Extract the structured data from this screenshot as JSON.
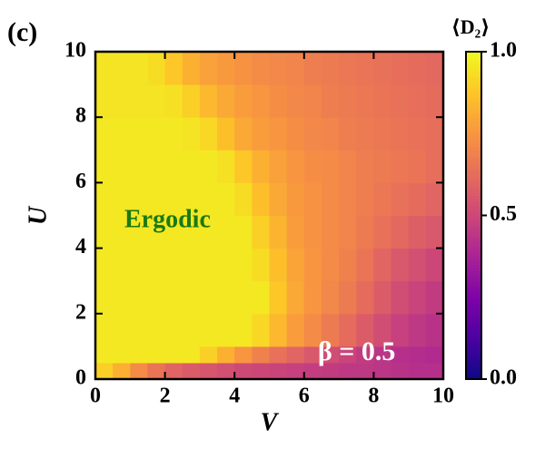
{
  "chart_data": {
    "type": "heatmap",
    "panel_label": "(c)",
    "xlabel": "V",
    "ylabel": "U",
    "colorbar_label": "⟨D₂⟩",
    "annotations": [
      "Ergodic",
      "β = 0.5"
    ],
    "colormap": "plasma",
    "x_edges": [
      0,
      0.5,
      1,
      1.5,
      2,
      2.5,
      3,
      3.5,
      4,
      4.5,
      5,
      5.5,
      6,
      6.5,
      7,
      7.5,
      8,
      8.5,
      9,
      9.5,
      10
    ],
    "y_edges": [
      0,
      0.5,
      1,
      2,
      3,
      4,
      5,
      6,
      7,
      8,
      9,
      10
    ],
    "values": [
      [
        0.9,
        0.82,
        0.72,
        0.65,
        0.6,
        0.57,
        0.55,
        0.53,
        0.51,
        0.5,
        0.49,
        0.48,
        0.47,
        0.46,
        0.45,
        0.45,
        0.44,
        0.43,
        0.42,
        0.42
      ],
      [
        0.96,
        0.96,
        0.96,
        0.96,
        0.96,
        0.96,
        0.9,
        0.82,
        0.75,
        0.69,
        0.64,
        0.6,
        0.56,
        0.52,
        0.49,
        0.46,
        0.44,
        0.42,
        0.41,
        0.4
      ],
      [
        0.96,
        0.96,
        0.96,
        0.96,
        0.96,
        0.96,
        0.96,
        0.96,
        0.96,
        0.92,
        0.84,
        0.77,
        0.72,
        0.67,
        0.62,
        0.57,
        0.52,
        0.48,
        0.45,
        0.43
      ],
      [
        0.96,
        0.96,
        0.96,
        0.96,
        0.96,
        0.96,
        0.96,
        0.96,
        0.96,
        0.96,
        0.88,
        0.8,
        0.75,
        0.71,
        0.67,
        0.62,
        0.57,
        0.52,
        0.49,
        0.46
      ],
      [
        0.96,
        0.96,
        0.96,
        0.96,
        0.96,
        0.96,
        0.96,
        0.96,
        0.96,
        0.93,
        0.86,
        0.79,
        0.75,
        0.72,
        0.69,
        0.65,
        0.6,
        0.56,
        0.53,
        0.5
      ],
      [
        0.96,
        0.96,
        0.96,
        0.96,
        0.96,
        0.96,
        0.96,
        0.96,
        0.96,
        0.9,
        0.83,
        0.77,
        0.74,
        0.72,
        0.7,
        0.67,
        0.64,
        0.61,
        0.58,
        0.56
      ],
      [
        0.96,
        0.96,
        0.96,
        0.96,
        0.96,
        0.96,
        0.96,
        0.96,
        0.93,
        0.86,
        0.8,
        0.76,
        0.74,
        0.72,
        0.7,
        0.68,
        0.66,
        0.64,
        0.62,
        0.6
      ],
      [
        0.96,
        0.96,
        0.96,
        0.96,
        0.96,
        0.96,
        0.96,
        0.94,
        0.88,
        0.82,
        0.78,
        0.75,
        0.73,
        0.72,
        0.7,
        0.68,
        0.67,
        0.66,
        0.65,
        0.63
      ],
      [
        0.96,
        0.96,
        0.96,
        0.96,
        0.96,
        0.95,
        0.92,
        0.86,
        0.8,
        0.77,
        0.75,
        0.73,
        0.71,
        0.7,
        0.68,
        0.67,
        0.66,
        0.65,
        0.64,
        0.63
      ],
      [
        0.95,
        0.95,
        0.95,
        0.95,
        0.94,
        0.9,
        0.84,
        0.8,
        0.77,
        0.75,
        0.73,
        0.71,
        0.7,
        0.68,
        0.67,
        0.66,
        0.65,
        0.64,
        0.63,
        0.62
      ],
      [
        0.95,
        0.95,
        0.95,
        0.93,
        0.88,
        0.82,
        0.78,
        0.76,
        0.74,
        0.72,
        0.71,
        0.7,
        0.68,
        0.67,
        0.66,
        0.65,
        0.64,
        0.63,
        0.62,
        0.61
      ]
    ],
    "xlim": [
      0,
      10
    ],
    "ylim": [
      0,
      10
    ],
    "xticks": [
      0,
      2,
      4,
      6,
      8,
      10
    ],
    "yticks": [
      0,
      2,
      4,
      6,
      8,
      10
    ],
    "clim": [
      0,
      1
    ],
    "cticks": [
      {
        "value": 0,
        "label": "0.0"
      },
      {
        "value": 0.5,
        "label": "0.5"
      },
      {
        "value": 1,
        "label": "1.0"
      }
    ]
  }
}
